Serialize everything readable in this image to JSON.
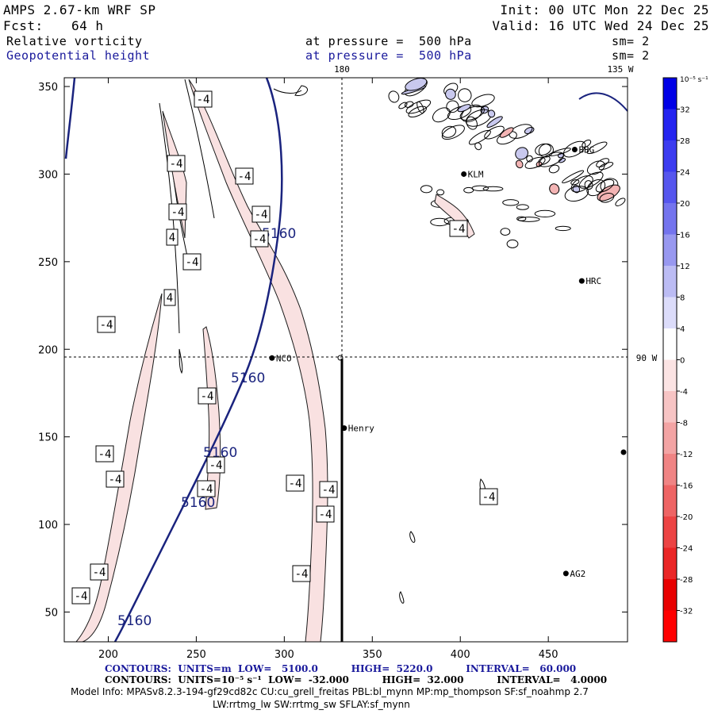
{
  "header": {
    "title": "AMPS 2.67-km WRF SP",
    "forecast_label": "Fcst:",
    "forecast_value": "64 h",
    "init": "Init: 00 UTC Mon 22 Dec 25",
    "valid": "Valid: 16 UTC Wed 24 Dec 25",
    "field1_name": "Relative vorticity",
    "field1_level": "at pressure =  500 hPa",
    "field1_sm": "sm= 2",
    "field2_name": "Geopotential height",
    "field2_level": "at pressure =  500 hPa",
    "field2_sm": "sm= 2"
  },
  "chart_data": {
    "type": "contour-map",
    "x_ticks": [
      200,
      250,
      300,
      350,
      400,
      450
    ],
    "y_ticks": [
      50,
      100,
      150,
      200,
      250,
      300,
      350
    ],
    "xlim": [
      175,
      495
    ],
    "ylim": [
      33,
      355
    ],
    "meridian_labels": {
      "top_180": "180",
      "top_135w": "135 W",
      "right_90w": "90 W"
    },
    "height_contour_value": "5160",
    "vorticity_label": "-4",
    "vorticity_label_pos": "4",
    "stations": [
      {
        "name": "NCO",
        "x": 293,
        "y": 195
      },
      {
        "name": "Henry",
        "x": 334,
        "y": 155
      },
      {
        "name": "HRC",
        "x": 469,
        "y": 239
      },
      {
        "name": "AG2",
        "x": 460,
        "y": 72
      },
      {
        "name": "BBG",
        "x": 465,
        "y": 314
      },
      {
        "name": "KLM",
        "x": 402,
        "y": 300
      }
    ],
    "colorbar": {
      "units": "10⁻⁵ s⁻¹",
      "labels": [
        "32",
        "28",
        "24",
        "20",
        "16",
        "12",
        "8",
        "4",
        "0",
        "-4",
        "-8",
        "-12",
        "-16",
        "-20",
        "-24",
        "-28",
        "-32"
      ]
    }
  },
  "footer": {
    "line1": "CONTOURS:  UNITS=m  LOW=   5100.0          HIGH=  5220.0          INTERVAL=   60.000",
    "line2": "CONTOURS:  UNITS=10⁻⁵ s⁻¹  LOW=  -32.000          HIGH=  32.000          INTERVAL=   4.0000",
    "line3": "Model Info: MPASv8.2.3-194-gf29cd82c CU:cu_grell_freitas PBL:bl_mynn MP:mp_thompson SF:sf_noahmp 2.7",
    "line4": "LW:rrtmg_lw SW:rrtmg_sw SFLAY:sf_mynn"
  }
}
